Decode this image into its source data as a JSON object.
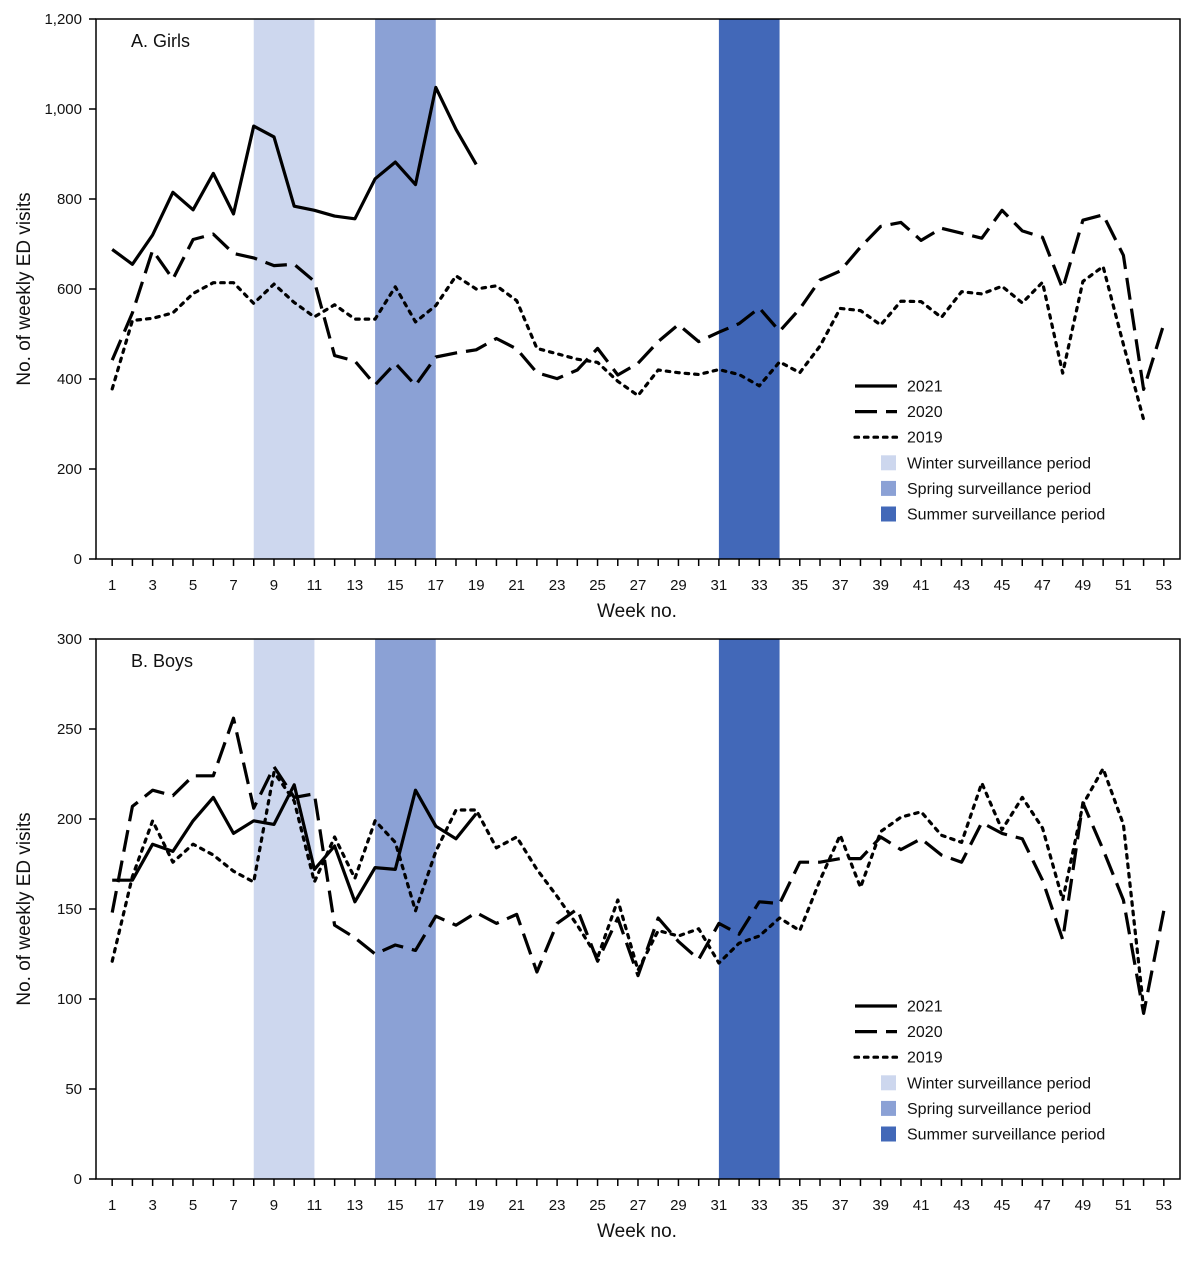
{
  "chart_data": [
    {
      "type": "line",
      "title": "A. Girls",
      "xlabel": "Week no.",
      "ylabel": "No. of weekly ED visits",
      "xlim": [
        0.2,
        53.8
      ],
      "ylim": [
        0,
        1200
      ],
      "yticks": [
        0,
        200,
        400,
        600,
        800,
        1000,
        1200
      ],
      "ytick_labels": [
        "0",
        "200",
        "400",
        "600",
        "800",
        "1,000",
        "1,200"
      ],
      "xticks": [
        1,
        3,
        5,
        7,
        9,
        11,
        13,
        15,
        17,
        19,
        21,
        23,
        25,
        27,
        29,
        31,
        33,
        35,
        37,
        39,
        41,
        43,
        45,
        47,
        49,
        51,
        53
      ],
      "grid": false,
      "legend_position": "bottom-right",
      "periods": [
        {
          "name": "Winter surveillance period",
          "start": 8,
          "end": 11,
          "color": "#cdd7ee"
        },
        {
          "name": "Spring surveillance period",
          "start": 14,
          "end": 17,
          "color": "#8ba1d5"
        },
        {
          "name": "Summer surveillance period",
          "start": 31,
          "end": 34,
          "color": "#4268b8"
        }
      ],
      "series": [
        {
          "name": "2021",
          "style": "solid",
          "x": [
            1,
            2,
            3,
            4,
            5,
            6,
            7,
            8,
            9,
            10,
            11,
            12,
            13,
            14,
            15,
            16,
            17,
            18,
            19
          ],
          "values": [
            688,
            655,
            720,
            815,
            776,
            857,
            767,
            962,
            938,
            784,
            775,
            762,
            756,
            845,
            882,
            832,
            1048,
            955,
            877
          ]
        },
        {
          "name": "2020",
          "style": "dashed",
          "x": [
            1,
            2,
            3,
            4,
            5,
            6,
            7,
            8,
            9,
            10,
            11,
            12,
            13,
            14,
            15,
            16,
            17,
            18,
            19,
            20,
            21,
            22,
            23,
            24,
            25,
            26,
            27,
            28,
            29,
            30,
            31,
            32,
            33,
            34,
            35,
            36,
            37,
            38,
            39,
            40,
            41,
            42,
            43,
            44,
            45,
            46,
            47,
            48,
            49,
            50,
            51,
            52,
            53
          ],
          "values": [
            442,
            547,
            686,
            622,
            710,
            722,
            679,
            669,
            652,
            655,
            617,
            452,
            440,
            387,
            435,
            386,
            449,
            458,
            465,
            490,
            467,
            414,
            401,
            420,
            468,
            409,
            435,
            483,
            521,
            483,
            504,
            523,
            558,
            506,
            556,
            620,
            640,
            693,
            739,
            748,
            708,
            735,
            724,
            713,
            775,
            729,
            715,
            601,
            753,
            765,
            675,
            377,
            522
          ]
        },
        {
          "name": "2019",
          "style": "dotted",
          "x": [
            1,
            2,
            3,
            4,
            5,
            6,
            7,
            8,
            9,
            10,
            11,
            12,
            13,
            14,
            15,
            16,
            17,
            18,
            19,
            20,
            21,
            22,
            23,
            24,
            25,
            26,
            27,
            28,
            29,
            30,
            31,
            32,
            33,
            34,
            35,
            36,
            37,
            38,
            39,
            40,
            41,
            42,
            43,
            44,
            45,
            46,
            47,
            48,
            49,
            50,
            51,
            52
          ],
          "values": [
            378,
            530,
            535,
            547,
            590,
            614,
            614,
            568,
            611,
            570,
            538,
            565,
            533,
            533,
            605,
            527,
            563,
            629,
            600,
            607,
            574,
            468,
            456,
            444,
            437,
            395,
            363,
            420,
            414,
            410,
            421,
            410,
            385,
            438,
            414,
            473,
            557,
            552,
            520,
            573,
            572,
            537,
            594,
            589,
            606,
            569,
            615,
            413,
            617,
            650,
            477,
            310
          ]
        }
      ]
    },
    {
      "type": "line",
      "title": "B. Boys",
      "xlabel": "Week no.",
      "ylabel": "No. of weekly ED visits",
      "xlim": [
        0.2,
        53.8
      ],
      "ylim": [
        0,
        300
      ],
      "yticks": [
        0,
        50,
        100,
        150,
        200,
        250,
        300
      ],
      "ytick_labels": [
        "0",
        "50",
        "100",
        "150",
        "200",
        "250",
        "300"
      ],
      "xticks": [
        1,
        3,
        5,
        7,
        9,
        11,
        13,
        15,
        17,
        19,
        21,
        23,
        25,
        27,
        29,
        31,
        33,
        35,
        37,
        39,
        41,
        43,
        45,
        47,
        49,
        51,
        53
      ],
      "grid": false,
      "legend_position": "bottom-right",
      "periods": [
        {
          "name": "Winter surveillance period",
          "start": 8,
          "end": 11,
          "color": "#cdd7ee"
        },
        {
          "name": "Spring surveillance period",
          "start": 14,
          "end": 17,
          "color": "#8ba1d5"
        },
        {
          "name": "Summer surveillance period",
          "start": 31,
          "end": 34,
          "color": "#4268b8"
        }
      ],
      "series": [
        {
          "name": "2021",
          "style": "solid",
          "x": [
            1,
            2,
            3,
            4,
            5,
            6,
            7,
            8,
            9,
            10,
            11,
            12,
            13,
            14,
            15,
            16,
            17,
            18,
            19
          ],
          "values": [
            166,
            166,
            186,
            182,
            199,
            212,
            192,
            199,
            197,
            219,
            172,
            185,
            154,
            173,
            172,
            216,
            196,
            189,
            203
          ]
        },
        {
          "name": "2020",
          "style": "dashed",
          "x": [
            1,
            2,
            3,
            4,
            5,
            6,
            7,
            8,
            9,
            10,
            11,
            12,
            13,
            14,
            15,
            16,
            17,
            18,
            19,
            20,
            21,
            22,
            23,
            24,
            25,
            26,
            27,
            28,
            29,
            30,
            31,
            32,
            33,
            34,
            35,
            36,
            37,
            38,
            39,
            40,
            41,
            42,
            43,
            44,
            45,
            46,
            47,
            48,
            49,
            50,
            51,
            52,
            53
          ],
          "values": [
            148,
            207,
            216,
            213,
            224,
            224,
            256,
            206,
            229,
            212,
            214,
            141,
            134,
            125,
            130,
            127,
            146,
            141,
            148,
            142,
            147,
            115,
            142,
            150,
            121,
            145,
            113,
            145,
            132,
            122,
            142,
            136,
            154,
            153,
            176,
            176,
            178,
            178,
            190,
            183,
            189,
            180,
            176,
            198,
            192,
            189,
            166,
            133,
            209,
            183,
            155,
            92,
            149
          ]
        },
        {
          "name": "2019",
          "style": "dotted",
          "x": [
            1,
            2,
            3,
            4,
            5,
            6,
            7,
            8,
            9,
            10,
            11,
            12,
            13,
            14,
            15,
            16,
            17,
            18,
            19,
            20,
            21,
            22,
            23,
            24,
            25,
            26,
            27,
            28,
            29,
            30,
            31,
            32,
            33,
            34,
            35,
            36,
            37,
            38,
            39,
            40,
            41,
            42,
            43,
            44,
            45,
            46,
            47,
            48,
            49,
            50,
            51,
            52
          ],
          "values": [
            121,
            168,
            199,
            176,
            186,
            180,
            171,
            165,
            226,
            210,
            165,
            190,
            167,
            199,
            187,
            149,
            182,
            205,
            205,
            184,
            190,
            172,
            157,
            141,
            123,
            155,
            116,
            138,
            135,
            139,
            120,
            131,
            135,
            145,
            138,
            166,
            191,
            162,
            193,
            201,
            204,
            191,
            187,
            220,
            194,
            212,
            195,
            155,
            208,
            228,
            197,
            95
          ]
        }
      ]
    }
  ],
  "legend": {
    "items": [
      {
        "label": "2021",
        "kind": "line",
        "style": "solid"
      },
      {
        "label": "2020",
        "kind": "line",
        "style": "dashed"
      },
      {
        "label": "2019",
        "kind": "line",
        "style": "dotted"
      },
      {
        "label": "Winter surveillance period",
        "kind": "swatch",
        "color": "#cdd7ee"
      },
      {
        "label": "Spring surveillance period",
        "kind": "swatch",
        "color": "#8ba1d5"
      },
      {
        "label": "Summer surveillance period",
        "kind": "swatch",
        "color": "#4268b8"
      }
    ]
  },
  "colors": {
    "line": "#000000",
    "axis": "#000000"
  }
}
